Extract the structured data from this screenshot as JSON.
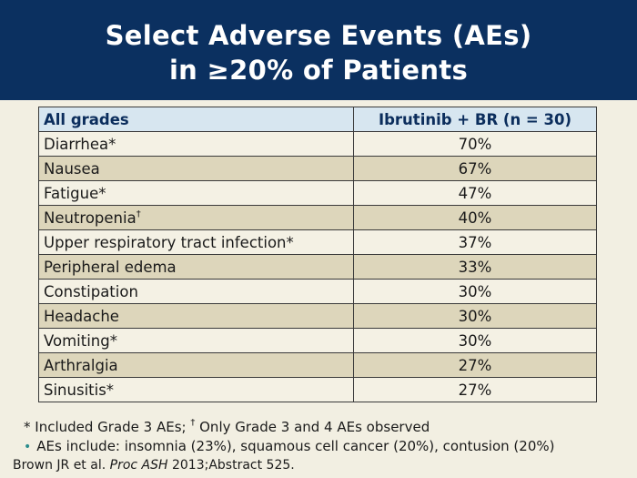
{
  "header": {
    "title_line1": "Select Adverse Events (AEs)",
    "title_line2": "in ≥20% of Patients"
  },
  "table": {
    "columns": [
      "All grades",
      "Ibrutinib + BR (n = 30)"
    ],
    "rows": [
      {
        "event": "Diarrhea*",
        "mark": "",
        "value": "70%"
      },
      {
        "event": "Nausea",
        "mark": "",
        "value": "67%"
      },
      {
        "event": "Fatigue*",
        "mark": "",
        "value": "47%"
      },
      {
        "event": "Neutropenia",
        "mark": "†",
        "value": "40%"
      },
      {
        "event": "Upper respiratory tract infection*",
        "mark": "",
        "value": "37%"
      },
      {
        "event": "Peripheral edema",
        "mark": "",
        "value": "33%"
      },
      {
        "event": "Constipation",
        "mark": "",
        "value": "30%"
      },
      {
        "event": "Headache",
        "mark": "",
        "value": "30%"
      },
      {
        "event": "Vomiting*",
        "mark": "",
        "value": "30%"
      },
      {
        "event": "Arthralgia",
        "mark": "",
        "value": "27%"
      },
      {
        "event": "Sinusitis*",
        "mark": "",
        "value": "27%"
      }
    ]
  },
  "footnotes": {
    "note1_part1": "* Included Grade 3 AEs; ",
    "note1_mark": "†",
    "note1_part2": " Only Grade 3 and 4 AEs observed",
    "bullet_glyph": "•",
    "note2": "AEs include: insomnia (23%), squamous cell cancer (20%), contusion (20%)"
  },
  "citation": {
    "authors": "Brown JR et al. ",
    "journal": "Proc ASH",
    "rest": " 2013;Abstract 525."
  },
  "colors": {
    "header_bg": "#0b3060",
    "table_header_bg": "#d7e6f0",
    "row_light": "#f4f1e4",
    "row_dark": "#ddd6bb",
    "page_bg": "#f2efe2"
  }
}
